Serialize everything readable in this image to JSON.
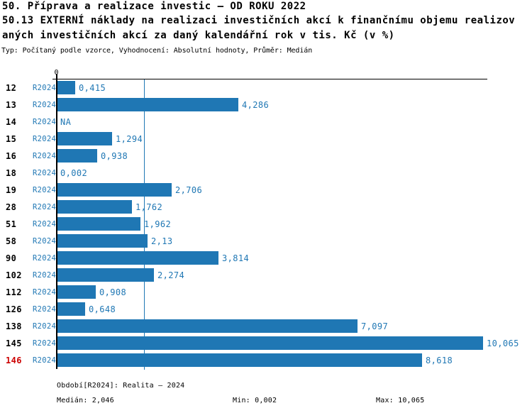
{
  "title": {
    "line1": "50. Příprava a realizace investic – OD ROKU 2022",
    "line2": "50.13 EXTERNÍ náklady na realizaci investičních akcí k finančnímu objemu realizov",
    "line3": "aných investičních akcí za daný kalendářní rok v tis. Kč (v %)",
    "meta": "Typ: Počítaný podle vzorce, Vyhodnocení: Absolutní hodnoty, Průměr: Medián"
  },
  "axis": {
    "zero_label": "0"
  },
  "rows": [
    {
      "id": "12",
      "period": "R2024",
      "label": "0,415",
      "value": 0.415
    },
    {
      "id": "13",
      "period": "R2024",
      "label": "4,286",
      "value": 4.286
    },
    {
      "id": "14",
      "period": "R2024",
      "label": "NA",
      "value": null
    },
    {
      "id": "15",
      "period": "R2024",
      "label": "1,294",
      "value": 1.294
    },
    {
      "id": "16",
      "period": "R2024",
      "label": "0,938",
      "value": 0.938
    },
    {
      "id": "18",
      "period": "R2024",
      "label": "0,002",
      "value": 0.002
    },
    {
      "id": "19",
      "period": "R2024",
      "label": "2,706",
      "value": 2.706
    },
    {
      "id": "28",
      "period": "R2024",
      "label": "1,762",
      "value": 1.762
    },
    {
      "id": "51",
      "period": "R2024",
      "label": "1,962",
      "value": 1.962
    },
    {
      "id": "58",
      "period": "R2024",
      "label": "2,13",
      "value": 2.13
    },
    {
      "id": "90",
      "period": "R2024",
      "label": "3,814",
      "value": 3.814
    },
    {
      "id": "102",
      "period": "R2024",
      "label": "2,274",
      "value": 2.274
    },
    {
      "id": "112",
      "period": "R2024",
      "label": "0,908",
      "value": 0.908
    },
    {
      "id": "126",
      "period": "R2024",
      "label": "0,648",
      "value": 0.648
    },
    {
      "id": "138",
      "period": "R2024",
      "label": "7,097",
      "value": 7.097
    },
    {
      "id": "145",
      "period": "R2024",
      "label": "10,065",
      "value": 10.065
    },
    {
      "id": "146",
      "period": "R2024",
      "label": "8,618",
      "value": 8.618,
      "highlighted": true
    }
  ],
  "footer": {
    "period_line": "Období[R2024]: Realita – 2024",
    "median": "Medián: 2,046",
    "min": "Min: 0,002",
    "max": "Max: 10,065"
  },
  "colors": {
    "bar_blue": "#1f77b4",
    "text_blue": "#1f77b4",
    "highlight_red": "#cc0000",
    "axis_black": "#000000"
  },
  "chart_data": {
    "type": "bar",
    "orientation": "horizontal",
    "title": "50.13 EXTERNÍ náklady na realizaci investičních akcí k finančnímu objemu realizovaných investičních akcí za daný kalendářní rok v tis. Kč (v %)",
    "categories": [
      "12",
      "13",
      "14",
      "15",
      "16",
      "18",
      "19",
      "28",
      "51",
      "58",
      "90",
      "102",
      "112",
      "126",
      "138",
      "145",
      "146"
    ],
    "series": [
      {
        "name": "R2024",
        "values": [
          0.415,
          4.286,
          null,
          1.294,
          0.938,
          0.002,
          2.706,
          1.762,
          1.962,
          2.13,
          3.814,
          2.274,
          0.908,
          0.648,
          7.097,
          10.065,
          8.618
        ]
      }
    ],
    "median": 2.046,
    "min": 0.002,
    "max": 10.065,
    "xlim": [
      0,
      10.2
    ],
    "grid": false,
    "median_line": true,
    "value_labels": true
  }
}
